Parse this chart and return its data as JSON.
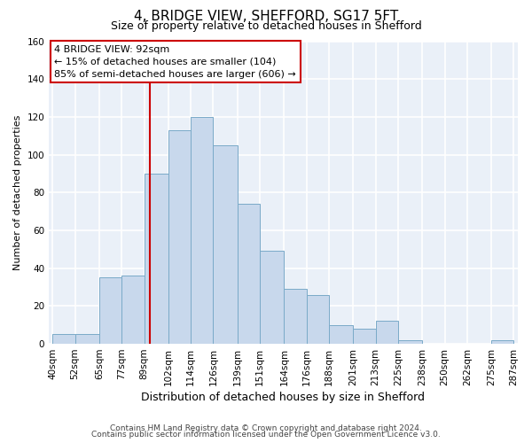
{
  "title": "4, BRIDGE VIEW, SHEFFORD, SG17 5FT",
  "subtitle": "Size of property relative to detached houses in Shefford",
  "xlabel": "Distribution of detached houses by size in Shefford",
  "ylabel": "Number of detached properties",
  "bar_color": "#c8d8ec",
  "bar_edge_color": "#7aaac8",
  "background_color": "#eaf0f8",
  "grid_color": "#ffffff",
  "annotation_box_color": "#cc0000",
  "vline_color": "#cc0000",
  "vline_x": 92,
  "bins": [
    40,
    52,
    65,
    77,
    89,
    102,
    114,
    126,
    139,
    151,
    164,
    176,
    188,
    201,
    213,
    225,
    238,
    250,
    262,
    275,
    287
  ],
  "counts": [
    5,
    5,
    35,
    36,
    90,
    113,
    120,
    105,
    74,
    49,
    29,
    26,
    10,
    8,
    12,
    2,
    0,
    0,
    0,
    2
  ],
  "tick_labels": [
    "40sqm",
    "52sqm",
    "65sqm",
    "77sqm",
    "89sqm",
    "102sqm",
    "114sqm",
    "126sqm",
    "139sqm",
    "151sqm",
    "164sqm",
    "176sqm",
    "188sqm",
    "201sqm",
    "213sqm",
    "225sqm",
    "238sqm",
    "250sqm",
    "262sqm",
    "275sqm",
    "287sqm"
  ],
  "ylim": [
    0,
    160
  ],
  "yticks": [
    0,
    20,
    40,
    60,
    80,
    100,
    120,
    140,
    160
  ],
  "annotation_title": "4 BRIDGE VIEW: 92sqm",
  "annotation_line1": "← 15% of detached houses are smaller (104)",
  "annotation_line2": "85% of semi-detached houses are larger (606) →",
  "footer1": "Contains HM Land Registry data © Crown copyright and database right 2024.",
  "footer2": "Contains public sector information licensed under the Open Government Licence v3.0.",
  "title_fontsize": 11,
  "subtitle_fontsize": 9,
  "xlabel_fontsize": 9,
  "ylabel_fontsize": 8,
  "tick_fontsize": 7.5,
  "footer_fontsize": 6.5
}
